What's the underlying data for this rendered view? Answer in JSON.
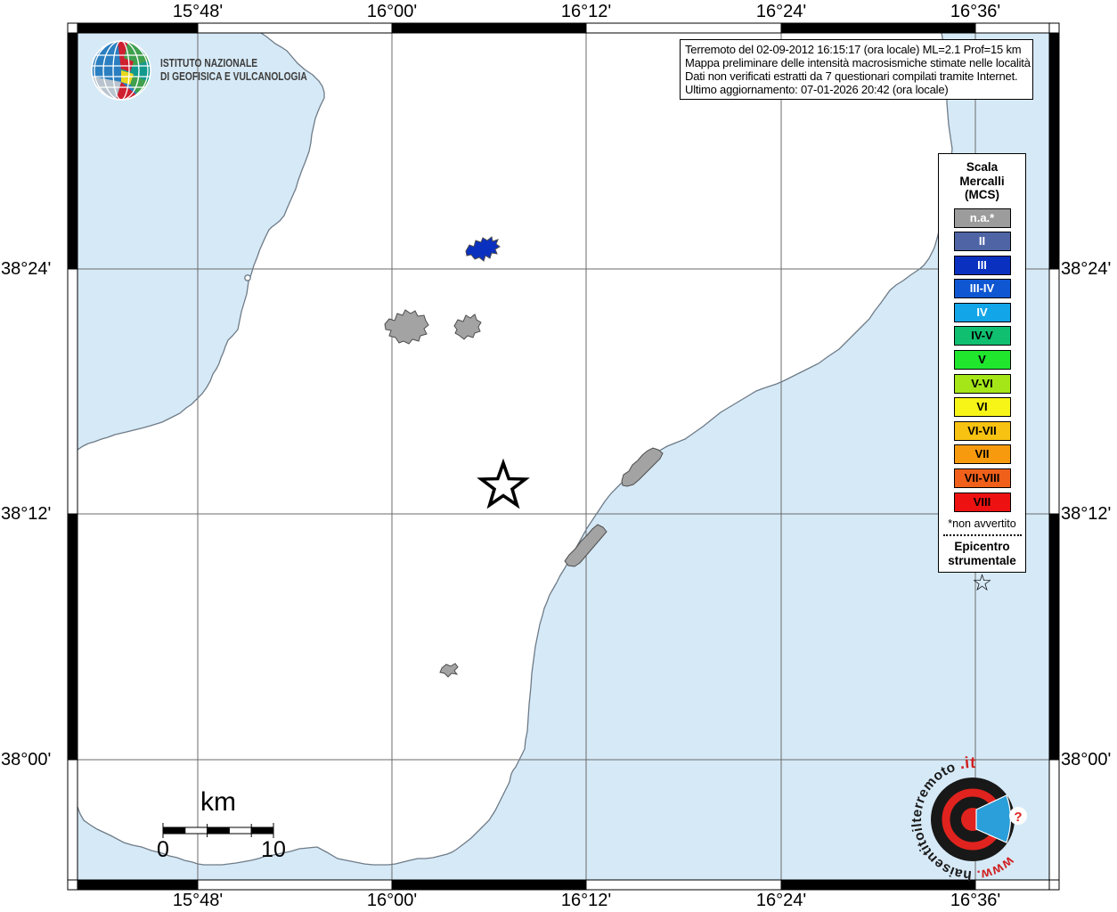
{
  "axes": {
    "top": [
      "15°48'",
      "16°00'",
      "16°12'",
      "16°24'",
      "16°36'"
    ],
    "bottom": [
      "15°48'",
      "16°00'",
      "16°12'",
      "16°24'",
      "16°36'"
    ],
    "left": [
      "38°24'",
      "38°12'",
      "38°00'"
    ],
    "right": [
      "38°24'",
      "38°12'",
      "38°00'"
    ]
  },
  "info_box": {
    "lines": [
      "Terremoto del 02-09-2012 16:15:17 (ora locale) ML=2.1 Prof=15 km",
      "Mappa preliminare delle intensità macrosismiche stimate nelle località",
      "Dati non verificati estratti da 7 questionari compilati tramite Internet.",
      "Ultimo aggiornamento: 07-01-2026 20:42 (ora locale)"
    ]
  },
  "logo": {
    "line1": "ISTITUTO NAZIONALE",
    "line2": "DI GEOFISICA E VULCANOLOGIA"
  },
  "legend": {
    "title_lines": [
      "Scala",
      "Mercalli",
      "(MCS)"
    ],
    "items": [
      {
        "label": "n.a.*",
        "color": "#9c9c9c",
        "text_color": "#ffffff"
      },
      {
        "label": "II",
        "color": "#4f64a5",
        "text_color": "#ffffff"
      },
      {
        "label": "III",
        "color": "#0a30c0",
        "text_color": "#ffffff"
      },
      {
        "label": "III-IV",
        "color": "#0f57d2",
        "text_color": "#ffffff"
      },
      {
        "label": "IV",
        "color": "#12a5e8",
        "text_color": "#ffffff"
      },
      {
        "label": "IV-V",
        "color": "#10bf70",
        "text_color": "#000000"
      },
      {
        "label": "V",
        "color": "#20e62e",
        "text_color": "#000000"
      },
      {
        "label": "V-VI",
        "color": "#a5e619",
        "text_color": "#000000"
      },
      {
        "label": "VI",
        "color": "#f7f518",
        "text_color": "#000000"
      },
      {
        "label": "VI-VII",
        "color": "#f7c211",
        "text_color": "#000000"
      },
      {
        "label": "VII",
        "color": "#f79a0e",
        "text_color": "#000000"
      },
      {
        "label": "VII-VIII",
        "color": "#f0601a",
        "text_color": "#000000"
      },
      {
        "label": "VIII",
        "color": "#ed1211",
        "text_color": "#000000"
      }
    ],
    "footnote": "*non avvertito",
    "epicenter_title_lines": [
      "Epicentro",
      "strumentale"
    ],
    "epicenter_icon": "☆"
  },
  "scale_bar": {
    "unit": "km",
    "start_label": "0",
    "end_label": "10"
  },
  "watermark": {
    "www": "www.",
    "domain": "haisentitoilterremoto",
    "tld": ".it",
    "question_mark": "?"
  },
  "map": {
    "sea_color": "#d6e9f7",
    "land_color": "#ffffff",
    "localities": [
      {
        "intensity": "III",
        "color": "#0a30c0"
      },
      {
        "intensity": "n.a.",
        "color": "#a3a3a3"
      },
      {
        "intensity": "n.a.",
        "color": "#a3a3a3"
      },
      {
        "intensity": "n.a.",
        "color": "#a3a3a3"
      },
      {
        "intensity": "n.a.",
        "color": "#a3a3a3"
      },
      {
        "intensity": "n.a.",
        "color": "#a3a3a3"
      }
    ],
    "epicenter_symbol": "star"
  }
}
